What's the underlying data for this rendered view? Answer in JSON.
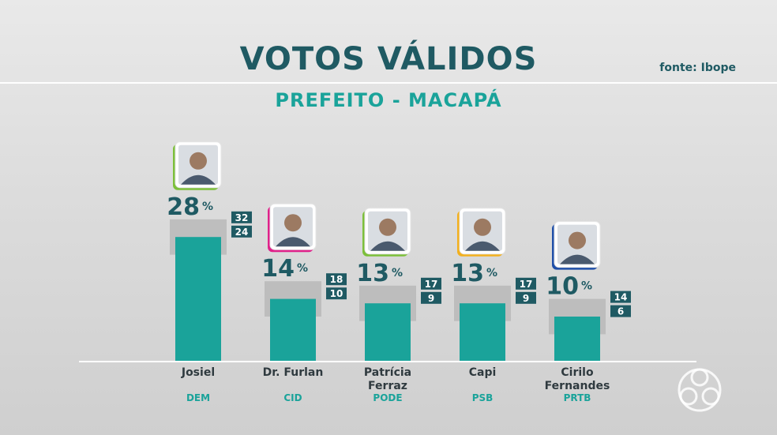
{
  "header": {
    "title": "VOTOS VÁLIDOS",
    "subtitle": "PREFEITO - MACAPÁ",
    "source": "fonte: Ibope"
  },
  "chart_data": {
    "type": "bar",
    "title": "VOTOS VÁLIDOS",
    "subtitle": "PREFEITO - MACAPÁ",
    "unit": "%",
    "categories": [
      "Josiel",
      "Dr. Furlan",
      "Patrícia Ferraz",
      "Capi",
      "Cirilo Fernandes"
    ],
    "parties": [
      "DEM",
      "CID",
      "PODE",
      "PSB",
      "PRTB"
    ],
    "values": [
      28,
      14,
      13,
      13,
      10
    ],
    "range_high": [
      32,
      18,
      17,
      17,
      14
    ],
    "range_low": [
      24,
      10,
      9,
      9,
      6
    ],
    "value_labels": [
      "28",
      "14",
      "13",
      "13",
      "10"
    ],
    "range_high_labels": [
      "32",
      "18",
      "17",
      "17",
      "14"
    ],
    "range_low_labels": [
      "24",
      "10",
      "9",
      "9",
      "6"
    ],
    "ylim": [
      0,
      32
    ],
    "grid": false,
    "colors": {
      "bar": "#1aa39a",
      "range_band": "#b9b9b9",
      "label_box": "#1f5a63",
      "title": "#1f5a63",
      "subtitle": "#1aa39a",
      "photo_accents": [
        "#7cbf3a",
        "#e0218a",
        "#7cbf3a",
        "#f2b01e",
        "#1f4fa8"
      ]
    },
    "icons": [
      "candidate-photo",
      "candidate-photo",
      "candidate-photo",
      "candidate-photo",
      "candidate-photo"
    ]
  }
}
